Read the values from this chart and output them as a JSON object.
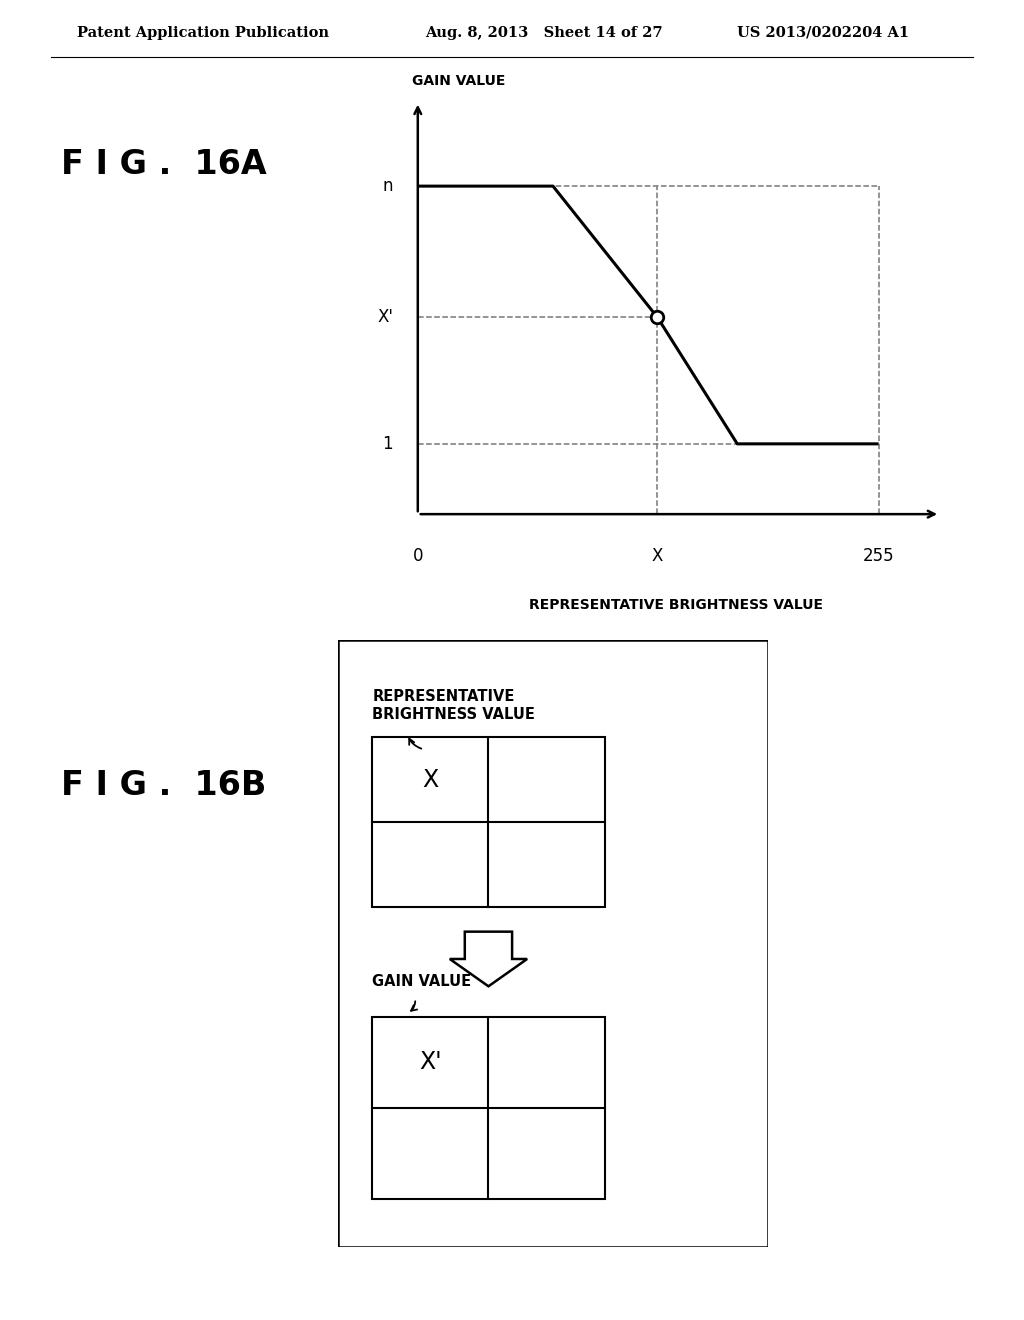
{
  "header_left": "Patent Application Publication",
  "header_mid": "Aug. 8, 2013   Sheet 14 of 27",
  "header_right": "US 2013/0202204 A1",
  "fig_label_16A": "F I G .  16A",
  "fig_label_16B": "F I G .  16B",
  "graph": {
    "ylabel": "GAIN VALUE",
    "xlabel": "REPRESENTATIVE BRIGHTNESS VALUE",
    "ytick_n": "n",
    "ytick_xp": "X'",
    "ytick_1": "1",
    "xtick_0": "0",
    "xtick_x": "X",
    "xtick_255": "255"
  },
  "diagram": {
    "top_label_line1": "REPRESENTATIVE",
    "top_label_line2": "BRIGHTNESS VALUE",
    "top_cell_text": "X",
    "bottom_label": "GAIN VALUE",
    "bottom_cell_text": "X'"
  },
  "background_color": "#ffffff",
  "font_color": "#000000"
}
